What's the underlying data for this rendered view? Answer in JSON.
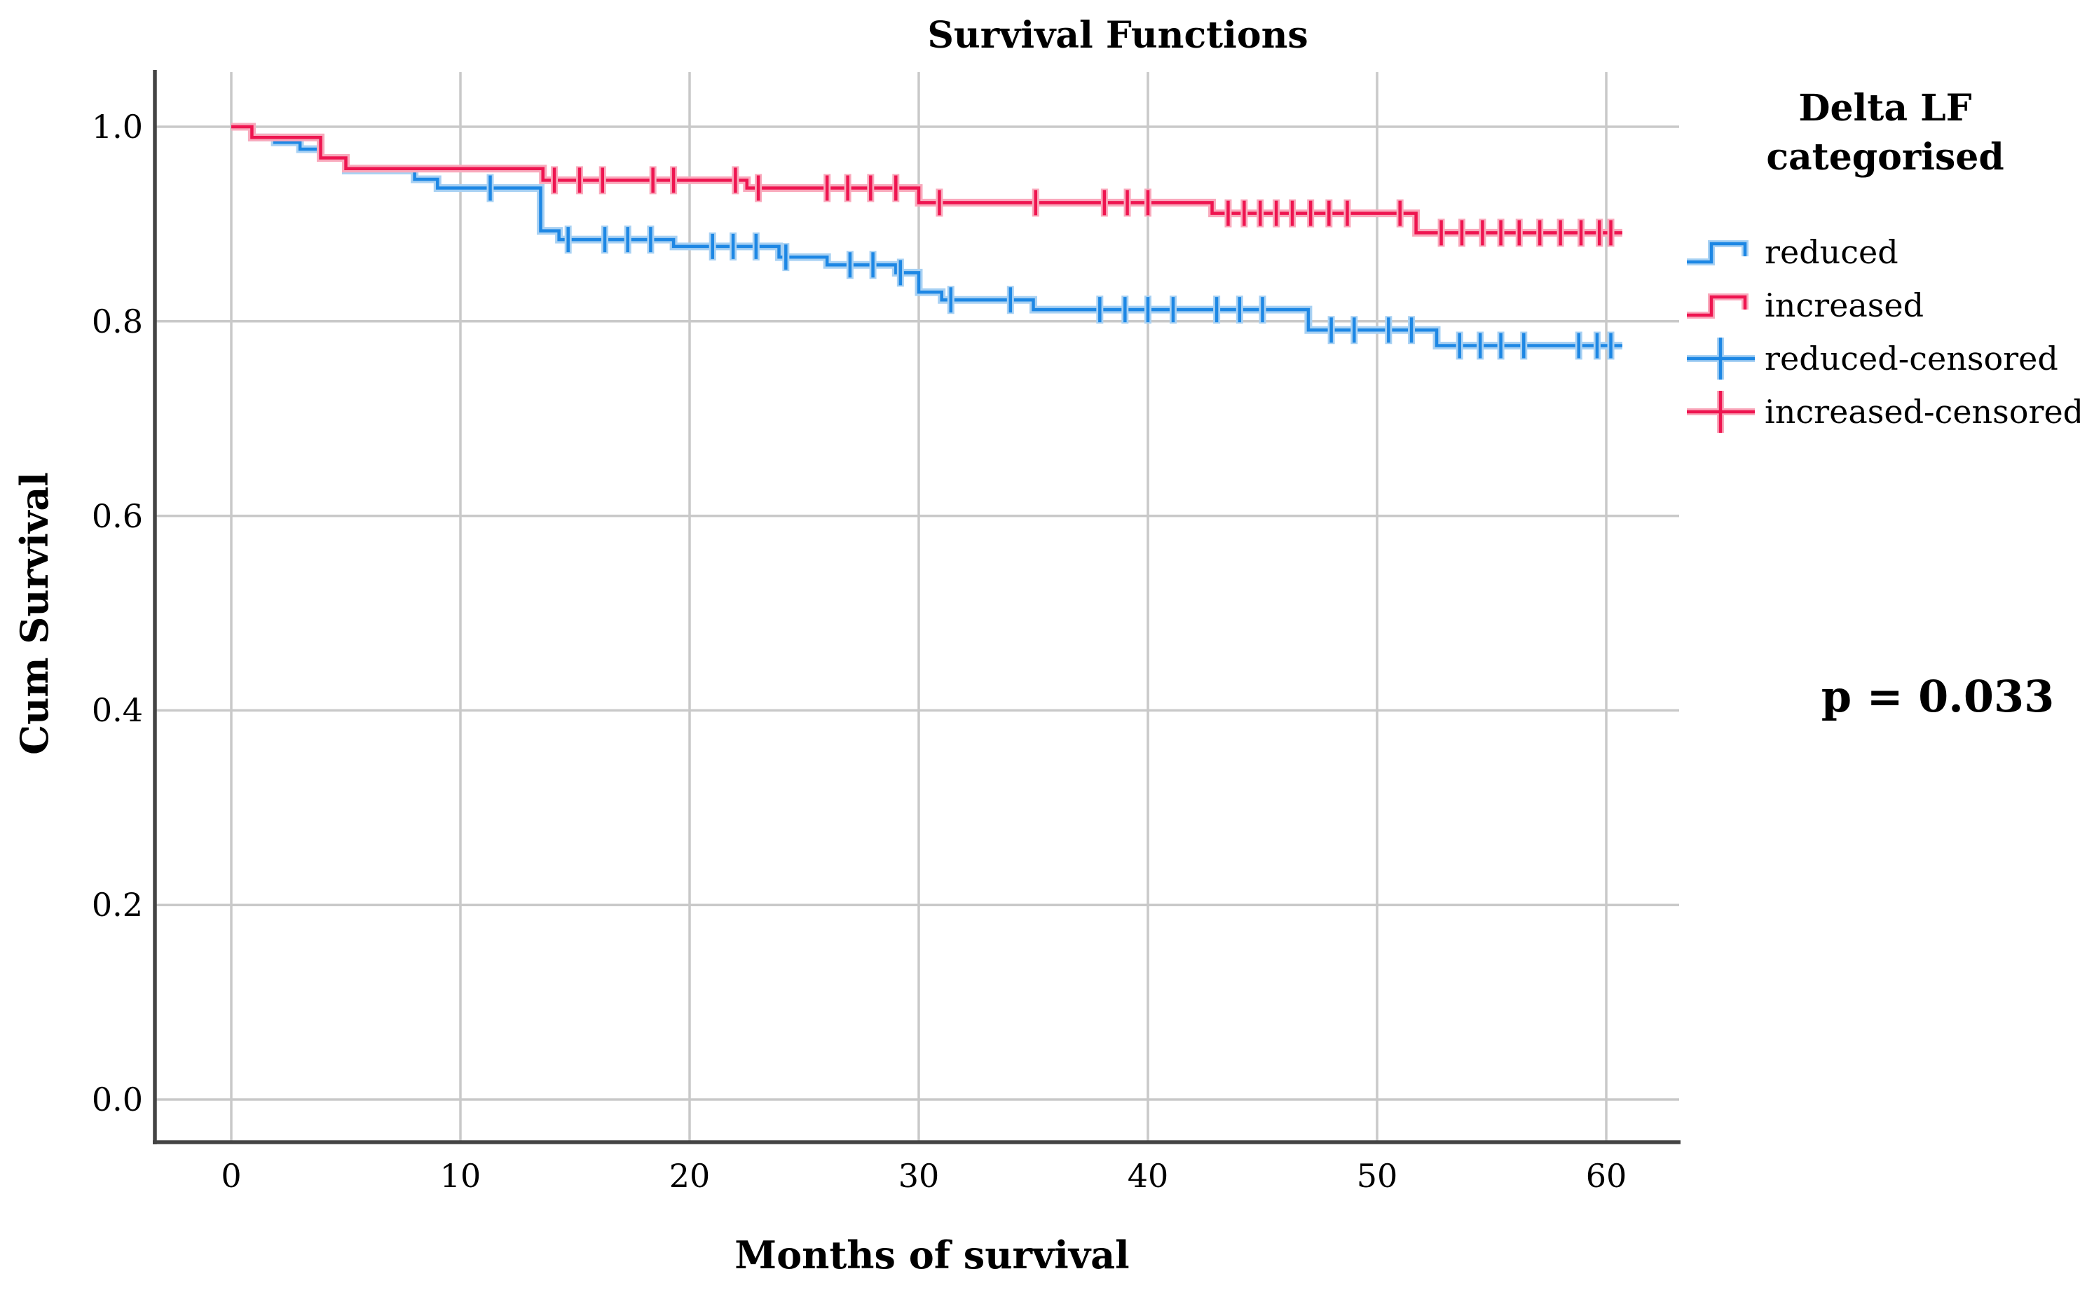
{
  "title": "Survival Functions",
  "axes": {
    "y_label": "Cum Survival",
    "x_label": "Months of survival",
    "y_ticks": [
      "1.0",
      "0.8",
      "0.6",
      "0.4",
      "0.2",
      "0.0"
    ],
    "x_ticks": [
      "0",
      "10",
      "20",
      "30",
      "40",
      "50",
      "60"
    ]
  },
  "legend": {
    "title_line1": "Delta LF",
    "title_line2": "categorised",
    "items": [
      {
        "label": "reduced",
        "type": "step",
        "color": "#1D87E4",
        "halo": "#A8D1F3"
      },
      {
        "label": "increased",
        "type": "step",
        "color": "#EE1550",
        "halo": "#F9A9BC"
      },
      {
        "label": "reduced-censored",
        "type": "censor",
        "color": "#1D87E4",
        "halo": "#A8D1F3"
      },
      {
        "label": "increased-censored",
        "type": "censor",
        "color": "#EE1550",
        "halo": "#F9A9BC"
      }
    ]
  },
  "annotation": {
    "p_value": "p = 0.033"
  },
  "colors": {
    "reduced": "#1D87E4",
    "increased": "#EE1550",
    "gridline": "#C9C9C9",
    "axis": "#444444"
  },
  "chart_data": {
    "type": "line",
    "subtype": "kaplan-meier-step-function",
    "title": "Survival Functions",
    "xlabel": "Months of survival",
    "ylabel": "Cum Survival",
    "xlim": [
      -3.4,
      63
    ],
    "ylim": [
      -0.045,
      1.056
    ],
    "x_tick_values": [
      0,
      10,
      20,
      30,
      40,
      50,
      60
    ],
    "y_tick_values": [
      1.0,
      0.8,
      0.6,
      0.4,
      0.2,
      0.0
    ],
    "grid": true,
    "legend_position": "right",
    "legend_title": "Delta LF categorised",
    "p_value_text": "p = 0.033",
    "series": [
      {
        "name": "reduced",
        "color": "#1D87E4",
        "steps": [
          [
            0,
            1.0
          ],
          [
            0.9,
            0.989
          ],
          [
            1.9,
            0.984
          ],
          [
            3.0,
            0.977
          ],
          [
            3.9,
            0.968
          ],
          [
            5.0,
            0.955
          ],
          [
            8.0,
            0.946
          ],
          [
            9.0,
            0.937
          ],
          [
            13.5,
            0.893
          ],
          [
            14.3,
            0.884
          ],
          [
            19.3,
            0.877
          ],
          [
            23.9,
            0.866
          ],
          [
            26.0,
            0.858
          ],
          [
            29.0,
            0.85
          ],
          [
            30.0,
            0.83
          ],
          [
            31.0,
            0.822
          ],
          [
            35.0,
            0.812
          ],
          [
            47.0,
            0.791
          ],
          [
            52.6,
            0.775
          ]
        ],
        "end_time": 60.7,
        "censored": [
          [
            11.3,
            0.937
          ],
          [
            14.7,
            0.884
          ],
          [
            16.3,
            0.884
          ],
          [
            17.3,
            0.884
          ],
          [
            18.3,
            0.884
          ],
          [
            21.0,
            0.877
          ],
          [
            21.9,
            0.877
          ],
          [
            22.9,
            0.877
          ],
          [
            24.2,
            0.866
          ],
          [
            27.0,
            0.858
          ],
          [
            28.0,
            0.858
          ],
          [
            29.2,
            0.85
          ],
          [
            31.4,
            0.822
          ],
          [
            34.0,
            0.822
          ],
          [
            37.9,
            0.812
          ],
          [
            39.0,
            0.812
          ],
          [
            40.0,
            0.812
          ],
          [
            41.1,
            0.812
          ],
          [
            43.0,
            0.812
          ],
          [
            44.0,
            0.812
          ],
          [
            45.0,
            0.812
          ],
          [
            48.0,
            0.791
          ],
          [
            49.0,
            0.791
          ],
          [
            50.5,
            0.791
          ],
          [
            51.5,
            0.791
          ],
          [
            53.6,
            0.775
          ],
          [
            54.5,
            0.775
          ],
          [
            55.4,
            0.775
          ],
          [
            56.4,
            0.775
          ],
          [
            58.8,
            0.775
          ],
          [
            59.6,
            0.775
          ],
          [
            60.2,
            0.775
          ]
        ]
      },
      {
        "name": "increased",
        "color": "#EE1550",
        "steps": [
          [
            0,
            1.0
          ],
          [
            0.9,
            0.989
          ],
          [
            3.9,
            0.968
          ],
          [
            5.0,
            0.957
          ],
          [
            13.6,
            0.945
          ],
          [
            22.5,
            0.937
          ],
          [
            30.0,
            0.922
          ],
          [
            42.8,
            0.911
          ],
          [
            51.7,
            0.891
          ]
        ],
        "end_time": 60.7,
        "censored": [
          [
            14.1,
            0.945
          ],
          [
            15.2,
            0.945
          ],
          [
            16.2,
            0.945
          ],
          [
            18.4,
            0.945
          ],
          [
            19.3,
            0.945
          ],
          [
            22.0,
            0.945
          ],
          [
            23.0,
            0.937
          ],
          [
            26.0,
            0.937
          ],
          [
            26.9,
            0.937
          ],
          [
            27.9,
            0.937
          ],
          [
            29.0,
            0.937
          ],
          [
            30.9,
            0.922
          ],
          [
            35.1,
            0.922
          ],
          [
            38.1,
            0.922
          ],
          [
            39.1,
            0.922
          ],
          [
            40.0,
            0.922
          ],
          [
            43.5,
            0.911
          ],
          [
            44.2,
            0.911
          ],
          [
            44.9,
            0.911
          ],
          [
            45.6,
            0.911
          ],
          [
            46.3,
            0.911
          ],
          [
            47.1,
            0.911
          ],
          [
            47.9,
            0.911
          ],
          [
            48.7,
            0.911
          ],
          [
            51.0,
            0.911
          ],
          [
            52.8,
            0.891
          ],
          [
            53.7,
            0.891
          ],
          [
            54.6,
            0.891
          ],
          [
            55.4,
            0.891
          ],
          [
            56.2,
            0.891
          ],
          [
            57.1,
            0.891
          ],
          [
            58.0,
            0.891
          ],
          [
            58.9,
            0.891
          ],
          [
            59.7,
            0.891
          ],
          [
            60.2,
            0.891
          ]
        ]
      }
    ]
  }
}
